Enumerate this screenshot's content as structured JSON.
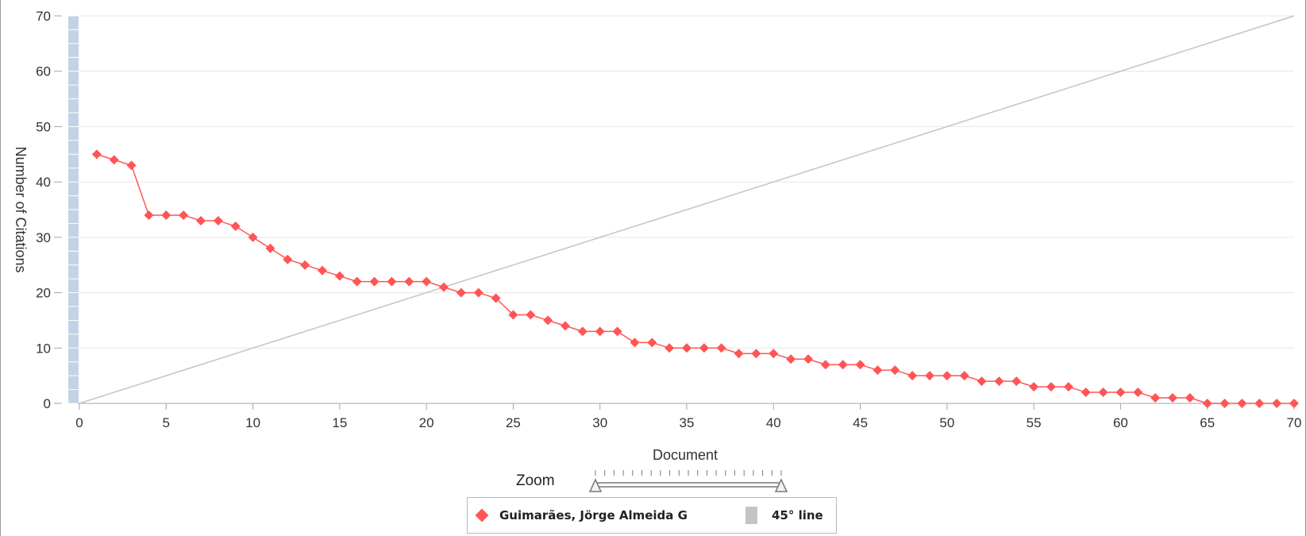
{
  "chart_data": {
    "type": "line",
    "xlabel": "Document",
    "ylabel": "Number of Citations",
    "xlim": [
      0,
      70
    ],
    "ylim": [
      0,
      70
    ],
    "x_ticks": [
      "0",
      "5",
      "10",
      "15",
      "20",
      "25",
      "30",
      "35",
      "40",
      "45",
      "50",
      "55",
      "60",
      "65",
      "70"
    ],
    "y_ticks": [
      "0",
      "10",
      "20",
      "30",
      "40",
      "50",
      "60",
      "70"
    ],
    "grid": "horizontal",
    "legend_position": "bottom-center",
    "series": [
      {
        "name": "Guimarães, Jörge Almeida G",
        "color": "#ff5555",
        "marker": "diamond",
        "x": [
          1,
          2,
          3,
          4,
          5,
          6,
          7,
          8,
          9,
          10,
          11,
          12,
          13,
          14,
          15,
          16,
          17,
          18,
          19,
          20,
          21,
          22,
          23,
          24,
          25,
          26,
          27,
          28,
          29,
          30,
          31,
          32,
          33,
          34,
          35,
          36,
          37,
          38,
          39,
          40,
          41,
          42,
          43,
          44,
          45,
          46,
          47,
          48,
          49,
          50,
          51,
          52,
          53,
          54,
          55,
          56,
          57,
          58,
          59,
          60,
          61,
          62,
          63,
          64,
          65,
          66,
          67,
          68,
          69,
          70
        ],
        "y": [
          45,
          44,
          43,
          34,
          34,
          34,
          33,
          33,
          32,
          30,
          28,
          26,
          25,
          24,
          23,
          22,
          22,
          22,
          22,
          22,
          21,
          20,
          20,
          19,
          16,
          16,
          15,
          14,
          13,
          13,
          13,
          11,
          11,
          10,
          10,
          10,
          10,
          9,
          9,
          9,
          8,
          8,
          7,
          7,
          7,
          6,
          6,
          5,
          5,
          5,
          5,
          4,
          4,
          4,
          3,
          3,
          3,
          2,
          2,
          2,
          2,
          1,
          1,
          1,
          0,
          0,
          0,
          0,
          0,
          0
        ]
      },
      {
        "name": "45° line",
        "color": "#c4c4c4",
        "x": [
          0,
          70
        ],
        "y": [
          0,
          70
        ]
      }
    ]
  },
  "zoom": {
    "label": "Zoom"
  },
  "legend": {
    "items": [
      "Guimarães, Jörge Almeida G",
      "45° line"
    ]
  }
}
